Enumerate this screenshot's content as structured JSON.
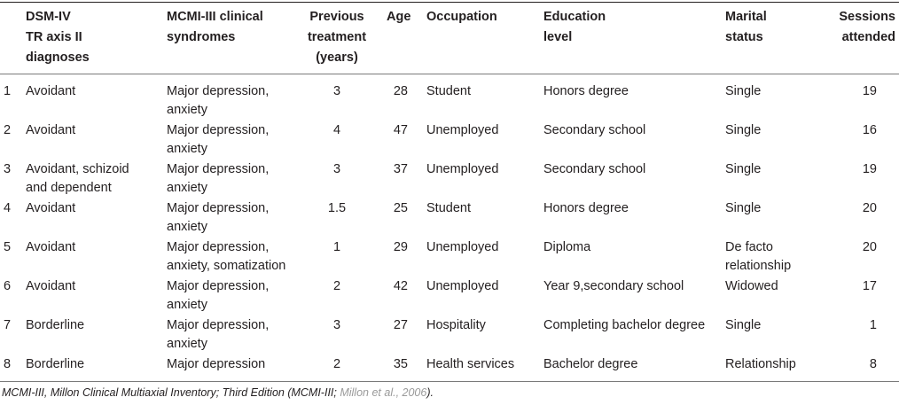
{
  "headers": {
    "diagnoses": "DSM-IV\nTR axis II\ndiagnoses",
    "syndromes": "MCMI-III clinical\nsyndromes",
    "treatment": "Previous\ntreatment\n(years)",
    "age": "Age",
    "occupation": "Occupation",
    "education": "Education\nlevel",
    "marital": "Marital\nstatus",
    "sessions": "Sessions\nattended"
  },
  "rows": [
    {
      "id": "1",
      "diagnoses": "Avoidant",
      "syndromes": "Major depression,\nanxiety",
      "treatment": "3",
      "age": "28",
      "occupation": "Student",
      "education": "Honors degree",
      "marital": "Single",
      "sessions": "19"
    },
    {
      "id": "2",
      "diagnoses": "Avoidant",
      "syndromes": "Major depression,\nanxiety",
      "treatment": "4",
      "age": "47",
      "occupation": "Unemployed",
      "education": "Secondary school",
      "marital": "Single",
      "sessions": "16"
    },
    {
      "id": "3",
      "diagnoses": "Avoidant, schizoid\nand dependent",
      "syndromes": "Major depression,\nanxiety",
      "treatment": "3",
      "age": "37",
      "occupation": "Unemployed",
      "education": "Secondary school",
      "marital": "Single",
      "sessions": "19"
    },
    {
      "id": "4",
      "diagnoses": "Avoidant",
      "syndromes": "Major depression,\nanxiety",
      "treatment": "1.5",
      "age": "25",
      "occupation": "Student",
      "education": "Honors degree",
      "marital": "Single",
      "sessions": "20"
    },
    {
      "id": "5",
      "diagnoses": "Avoidant",
      "syndromes": "Major depression,\nanxiety, somatization",
      "treatment": "1",
      "age": "29",
      "occupation": "Unemployed",
      "education": "Diploma",
      "marital": "De facto\nrelationship",
      "sessions": "20"
    },
    {
      "id": "6",
      "diagnoses": "Avoidant",
      "syndromes": "Major depression,\nanxiety",
      "treatment": "2",
      "age": "42",
      "occupation": "Unemployed",
      "education": "Year 9,secondary school",
      "marital": "Widowed",
      "sessions": "17"
    },
    {
      "id": "7",
      "diagnoses": "Borderline",
      "syndromes": "Major depression,\nanxiety",
      "treatment": "3",
      "age": "27",
      "occupation": "Hospitality",
      "education": "Completing bachelor degree",
      "marital": "Single",
      "sessions": "1"
    },
    {
      "id": "8",
      "diagnoses": "Borderline",
      "syndromes": "Major depression",
      "treatment": "2",
      "age": "35",
      "occupation": "Health services",
      "education": "Bachelor degree",
      "marital": "Relationship",
      "sessions": "8"
    }
  ],
  "footnote": {
    "text": "MCMI-III, Millon Clinical Multiaxial Inventory; Third Edition (MCMI-III; ",
    "ref": "Millon et al., 2006",
    "end": ")."
  }
}
